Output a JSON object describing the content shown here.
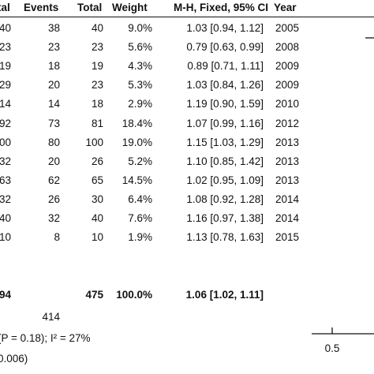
{
  "chart_data": {
    "type": "table",
    "headers": {
      "total_left": "tal",
      "events": "Events",
      "total": "Total",
      "weight": "Weight",
      "effect": "M-H, Fixed, 95% CI",
      "year": "Year"
    },
    "rows": [
      {
        "total_left": "40",
        "events": "38",
        "total": "40",
        "weight": "9.0%",
        "effect": "1.03 [0.94, 1.12]",
        "year": "2005"
      },
      {
        "total_left": "23",
        "events": "23",
        "total": "23",
        "weight": "5.6%",
        "effect": "0.79 [0.63, 0.99]",
        "year": "2008"
      },
      {
        "total_left": "19",
        "events": "18",
        "total": "19",
        "weight": "4.3%",
        "effect": "0.89 [0.71, 1.11]",
        "year": "2009"
      },
      {
        "total_left": "29",
        "events": "20",
        "total": "23",
        "weight": "5.3%",
        "effect": "1.03 [0.84, 1.26]",
        "year": "2009"
      },
      {
        "total_left": "14",
        "events": "14",
        "total": "18",
        "weight": "2.9%",
        "effect": "1.19 [0.90, 1.59]",
        "year": "2010"
      },
      {
        "total_left": "92",
        "events": "73",
        "total": "81",
        "weight": "18.4%",
        "effect": "1.07 [0.99, 1.16]",
        "year": "2012"
      },
      {
        "total_left": "00",
        "events": "80",
        "total": "100",
        "weight": "19.0%",
        "effect": "1.15 [1.03, 1.29]",
        "year": "2013"
      },
      {
        "total_left": "32",
        "events": "20",
        "total": "26",
        "weight": "5.2%",
        "effect": "1.10 [0.85, 1.42]",
        "year": "2013"
      },
      {
        "total_left": "63",
        "events": "62",
        "total": "65",
        "weight": "14.5%",
        "effect": "1.02 [0.95, 1.09]",
        "year": "2013"
      },
      {
        "total_left": "32",
        "events": "26",
        "total": "30",
        "weight": "6.4%",
        "effect": "1.08 [0.92, 1.28]",
        "year": "2014"
      },
      {
        "total_left": "40",
        "events": "32",
        "total": "40",
        "weight": "7.6%",
        "effect": "1.16 [0.97, 1.38]",
        "year": "2014"
      },
      {
        "total_left": "10",
        "events": "8",
        "total": "10",
        "weight": "1.9%",
        "effect": "1.13 [0.78, 1.63]",
        "year": "2015"
      }
    ],
    "summary": {
      "total_left": "94",
      "total": "475",
      "weight": "100.0%",
      "effect": "1.06 [1.02, 1.11]"
    },
    "total_events": "414",
    "heterogeneity": "(P = 0.18); I² = 27%",
    "overall_effect": "0.006)",
    "axis": {
      "tick_label": "0.5"
    }
  }
}
